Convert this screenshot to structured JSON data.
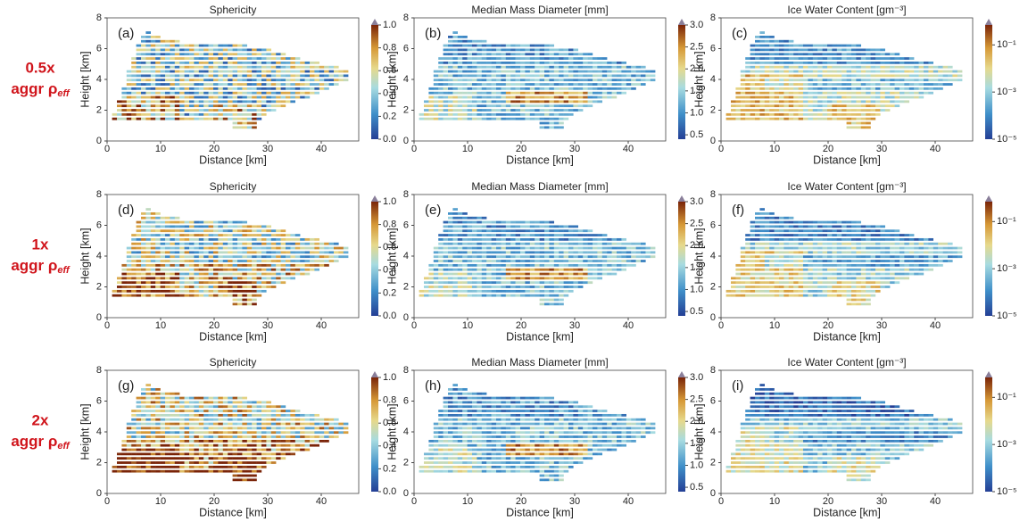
{
  "rows": [
    {
      "label": "0.5x",
      "label2": "aggr ρ",
      "sub": "eff"
    },
    {
      "label": "1x",
      "label2": "aggr ρ",
      "sub": "eff"
    },
    {
      "label": "2x",
      "label2": "aggr ρ",
      "sub": "eff"
    }
  ],
  "chart_data": [
    {
      "type": "heatmap",
      "title": "Sphericity",
      "panel_label": "(a)",
      "xlabel": "Distance [km]",
      "ylabel": "Height [km]",
      "xlim": [
        0,
        47
      ],
      "ylim": [
        0,
        8
      ],
      "xticks": [
        0,
        10,
        20,
        30,
        40
      ],
      "yticks": [
        0,
        2,
        4,
        6,
        8
      ],
      "colorbar": {
        "lim": [
          0,
          1
        ],
        "ticks": [
          {
            "value": 0,
            "label": "0.0"
          },
          {
            "value": 0.2,
            "label": "0.2"
          },
          {
            "value": 0.4,
            "label": "0.4"
          },
          {
            "value": 0.6,
            "label": "0.6"
          },
          {
            "value": 0.8,
            "label": "0.8"
          },
          {
            "value": 1,
            "label": "1.0"
          }
        ]
      }
    },
    {
      "type": "heatmap",
      "title": "Median Mass Diameter [mm]",
      "panel_label": "(b)",
      "xlabel": "Distance [km]",
      "ylabel": "Height [km]",
      "xlim": [
        0,
        47
      ],
      "ylim": [
        0,
        8
      ],
      "xticks": [
        0,
        10,
        20,
        30,
        40
      ],
      "yticks": [
        0,
        2,
        4,
        6,
        8
      ],
      "colorbar": {
        "lim": [
          0.4,
          3
        ],
        "ticks": [
          0.5,
          {
            "value": 1,
            "label": "1.0"
          },
          1.5,
          {
            "value": 2,
            "label": "2.0"
          },
          2.5,
          {
            "value": 3,
            "label": "3.0"
          }
        ]
      }
    },
    {
      "type": "heatmap",
      "title": "Ice Water Content [gm⁻³]",
      "panel_label": "(c)",
      "xlabel": "Distance [km]",
      "ylabel": "Height [km]",
      "xlim": [
        0,
        47
      ],
      "ylim": [
        0,
        8
      ],
      "xticks": [
        0,
        10,
        20,
        30,
        40
      ],
      "yticks": [
        0,
        2,
        4,
        6,
        8
      ],
      "colorbar": {
        "lim": [
          1e-05,
          0.7
        ],
        "log": true,
        "ticks": [
          {
            "value": 1e-05,
            "label": "10⁻⁵"
          },
          {
            "value": 0.001,
            "label": "10⁻³"
          },
          {
            "value": 0.1,
            "label": "10⁻¹"
          }
        ]
      }
    },
    {
      "type": "heatmap",
      "title": "Sphericity",
      "panel_label": "(d)",
      "xlabel": "Distance [km]",
      "ylabel": "Height [km]",
      "xlim": [
        0,
        47
      ],
      "ylim": [
        0,
        8
      ],
      "xticks": [
        0,
        10,
        20,
        30,
        40
      ],
      "yticks": [
        0,
        2,
        4,
        6,
        8
      ],
      "colorbar": {
        "lim": [
          0,
          1
        ],
        "ticks": [
          {
            "value": 0,
            "label": "0.0"
          },
          {
            "value": 0.2,
            "label": "0.2"
          },
          {
            "value": 0.4,
            "label": "0.4"
          },
          {
            "value": 0.6,
            "label": "0.6"
          },
          {
            "value": 0.8,
            "label": "0.8"
          },
          {
            "value": 1,
            "label": "1.0"
          }
        ]
      }
    },
    {
      "type": "heatmap",
      "title": "Median Mass Diameter [mm]",
      "panel_label": "(e)",
      "xlabel": "Distance [km]",
      "ylabel": "Height [km]",
      "xlim": [
        0,
        47
      ],
      "ylim": [
        0,
        8
      ],
      "xticks": [
        0,
        10,
        20,
        30,
        40
      ],
      "yticks": [
        0,
        2,
        4,
        6,
        8
      ],
      "colorbar": {
        "lim": [
          0.4,
          3
        ],
        "ticks": [
          0.5,
          {
            "value": 1,
            "label": "1.0"
          },
          1.5,
          {
            "value": 2,
            "label": "2.0"
          },
          2.5,
          {
            "value": 3,
            "label": "3.0"
          }
        ]
      }
    },
    {
      "type": "heatmap",
      "title": "Ice Water Content [gm⁻³]",
      "panel_label": "(f)",
      "xlabel": "Distance [km]",
      "ylabel": "Height [km]",
      "xlim": [
        0,
        47
      ],
      "ylim": [
        0,
        8
      ],
      "xticks": [
        0,
        10,
        20,
        30,
        40
      ],
      "yticks": [
        0,
        2,
        4,
        6,
        8
      ],
      "colorbar": {
        "lim": [
          1e-05,
          0.7
        ],
        "log": true,
        "ticks": [
          {
            "value": 1e-05,
            "label": "10⁻⁵"
          },
          {
            "value": 0.001,
            "label": "10⁻³"
          },
          {
            "value": 0.1,
            "label": "10⁻¹"
          }
        ]
      }
    },
    {
      "type": "heatmap",
      "title": "Sphericity",
      "panel_label": "(g)",
      "xlabel": "Distance [km]",
      "ylabel": "Height [km]",
      "xlim": [
        0,
        47
      ],
      "ylim": [
        0,
        8
      ],
      "xticks": [
        0,
        10,
        20,
        30,
        40
      ],
      "yticks": [
        0,
        2,
        4,
        6,
        8
      ],
      "colorbar": {
        "lim": [
          0,
          1
        ],
        "ticks": [
          {
            "value": 0,
            "label": "0.0"
          },
          {
            "value": 0.2,
            "label": "0.2"
          },
          {
            "value": 0.4,
            "label": "0.4"
          },
          {
            "value": 0.6,
            "label": "0.6"
          },
          {
            "value": 0.8,
            "label": "0.8"
          },
          {
            "value": 1,
            "label": "1.0"
          }
        ]
      }
    },
    {
      "type": "heatmap",
      "title": "Median Mass Diameter [mm]",
      "panel_label": "(h)",
      "xlabel": "Distance [km]",
      "ylabel": "Height [km]",
      "xlim": [
        0,
        47
      ],
      "ylim": [
        0,
        8
      ],
      "xticks": [
        0,
        10,
        20,
        30,
        40
      ],
      "yticks": [
        0,
        2,
        4,
        6,
        8
      ],
      "colorbar": {
        "lim": [
          0.4,
          3
        ],
        "ticks": [
          0.5,
          {
            "value": 1,
            "label": "1.0"
          },
          1.5,
          {
            "value": 2,
            "label": "2.0"
          },
          2.5,
          {
            "value": 3,
            "label": "3.0"
          }
        ]
      }
    },
    {
      "type": "heatmap",
      "title": "Ice Water Content [gm⁻³]",
      "panel_label": "(i)",
      "xlabel": "Distance [km]",
      "ylabel": "Height [km]",
      "xlim": [
        0,
        47
      ],
      "ylim": [
        0,
        8
      ],
      "xticks": [
        0,
        10,
        20,
        30,
        40
      ],
      "yticks": [
        0,
        2,
        4,
        6,
        8
      ],
      "colorbar": {
        "lim": [
          1e-05,
          0.7
        ],
        "log": true,
        "ticks": [
          {
            "value": 1e-05,
            "label": "10⁻⁵"
          },
          {
            "value": 0.001,
            "label": "10⁻³"
          },
          {
            "value": 0.1,
            "label": "10⁻¹"
          }
        ]
      }
    }
  ]
}
